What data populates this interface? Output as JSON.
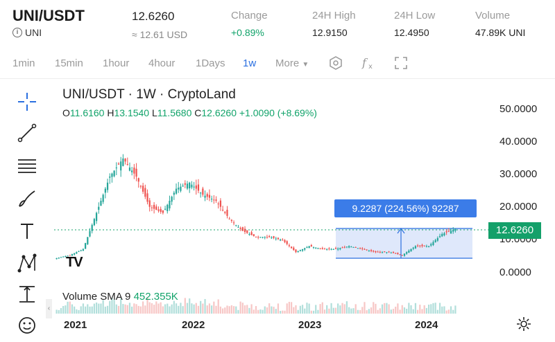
{
  "header": {
    "pair": "UNI/USDT",
    "base_label": "UNI",
    "price": "12.6260",
    "price_usd": "≈ 12.61 USD",
    "stats": [
      {
        "key": "Change",
        "value": "+0.89%"
      },
      {
        "key": "24H High",
        "value": "12.9150"
      },
      {
        "key": "24H Low",
        "value": "12.4950"
      },
      {
        "key": "Volume",
        "value": "47.89K UNI"
      }
    ]
  },
  "toolbar": {
    "timeframes": [
      "1min",
      "15min",
      "1hour",
      "4hour",
      "1Days",
      "1w"
    ],
    "active_timeframe": "1w",
    "more_label": "More",
    "icons": [
      "hexagon-settings-icon",
      "fx-indicators-icon",
      "fullscreen-icon"
    ]
  },
  "drawing_tools": [
    "crosshair-icon",
    "trendline-icon",
    "horizontal-lines-icon",
    "brush-icon",
    "text-icon",
    "pattern-icon",
    "measure-icon",
    "emoji-icon"
  ],
  "chart": {
    "title": "UNI/USDT · 1W · CryptoLand",
    "ohlc": {
      "o_label": "O",
      "o": "11.6160",
      "h_label": "H",
      "h": "13.1540",
      "l_label": "L",
      "l": "11.5680",
      "c_label": "C",
      "c": "12.6260",
      "change": "+1.0090 (+8.69%)"
    },
    "volume_legend": "Volume SMA 9",
    "volume_value": "452.355K",
    "y_ticks": [
      "50.0000",
      "40.0000",
      "30.0000",
      "20.0000",
      "10.0000",
      "0.0000"
    ],
    "x_ticks": [
      "2021",
      "2022",
      "2023",
      "2024"
    ],
    "last_price_tag": "12.6260",
    "measure_label": "9.2287 (224.56%) 92287",
    "logo_text": "TV",
    "colors": {
      "up": "#26a69a",
      "down": "#ef5350",
      "accent": "#2a6fe0",
      "measure_fill": "#dbe6fb"
    }
  },
  "chart_data": {
    "type": "candlestick",
    "x": [
      "2020-10",
      "2020-12",
      "2021-01",
      "2021-02",
      "2021-03",
      "2021-04",
      "2021-05",
      "2021-06",
      "2021-07",
      "2021-08",
      "2021-09",
      "2021-10",
      "2021-11",
      "2021-12",
      "2022-01",
      "2022-02",
      "2022-03",
      "2022-04",
      "2022-06",
      "2022-08",
      "2022-10",
      "2022-12",
      "2023-02",
      "2023-04",
      "2023-06",
      "2023-08",
      "2023-10",
      "2023-12",
      "2024-01",
      "2024-02",
      "2024-03"
    ],
    "close": [
      3,
      4,
      6,
      18,
      30,
      36,
      30,
      20,
      18,
      26,
      28,
      24,
      22,
      16,
      12,
      10,
      10,
      9,
      5,
      7,
      6,
      6,
      7,
      6,
      5,
      5,
      4,
      7,
      7,
      11,
      12.626
    ],
    "ylim": [
      0,
      55
    ],
    "volume_sma9": "452.355K"
  }
}
